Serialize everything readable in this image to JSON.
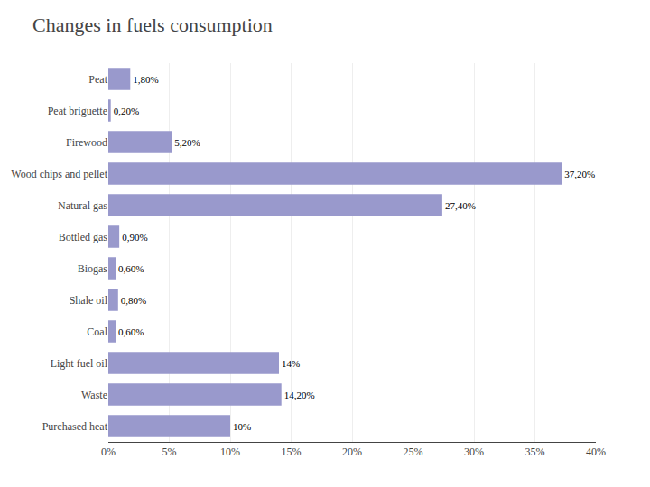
{
  "chart_data": {
    "type": "bar",
    "orientation": "horizontal",
    "title": "Changes in fuels consumption",
    "categories": [
      "Peat",
      "Peat briguette",
      "Firewood",
      "Wood chips and pellet",
      "Natural gas",
      "Bottled gas",
      "Biogas",
      "Shale oil",
      "Coal",
      "Light fuel oil",
      "Waste",
      "Purchased heat"
    ],
    "values": [
      1.8,
      0.2,
      5.2,
      37.2,
      27.4,
      0.9,
      0.6,
      0.8,
      0.6,
      14.0,
      14.2,
      10.0
    ],
    "value_labels": [
      "1,80%",
      "0,20%",
      "5,20%",
      "37,20%",
      "27,40%",
      "0,90%",
      "0,60%",
      "0,80%",
      "0,60%",
      "14%",
      "14,20%",
      "10%"
    ],
    "data_labels": true,
    "color": "#9999cc",
    "xlim": [
      0,
      40
    ],
    "xticks": [
      {
        "value": 0,
        "label": "0%"
      },
      {
        "value": 5,
        "label": "5%"
      },
      {
        "value": 10,
        "label": "10%"
      },
      {
        "value": 15,
        "label": "15%"
      },
      {
        "value": 20,
        "label": "20%"
      },
      {
        "value": 25,
        "label": "25%"
      },
      {
        "value": 30,
        "label": "30%"
      },
      {
        "value": 35,
        "label": "35%"
      },
      {
        "value": 40,
        "label": "40%"
      }
    ],
    "grid": true
  }
}
